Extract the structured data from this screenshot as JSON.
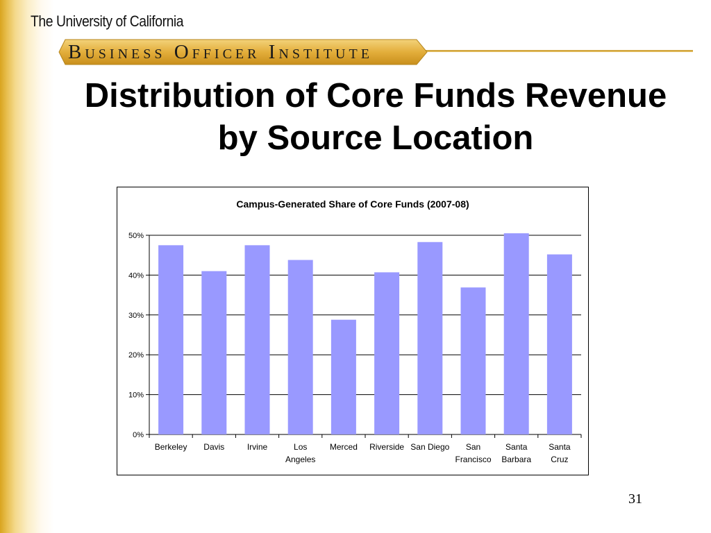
{
  "header": {
    "university": "The University of California",
    "institute": "Business Officer Institute"
  },
  "slide": {
    "title_line1": "Distribution of Core Funds Revenue",
    "title_line2": "by Source Location",
    "page_number": "31"
  },
  "colors": {
    "bar": "#9999ff",
    "gold": "#d9a41f"
  },
  "chart_data": {
    "type": "bar",
    "title": "Campus-Generated Share of Core Funds (2007-08)",
    "categories": [
      [
        "Berkeley"
      ],
      [
        "Davis"
      ],
      [
        "Irvine"
      ],
      [
        "Los",
        "Angeles"
      ],
      [
        "Merced"
      ],
      [
        "Riverside"
      ],
      [
        "San Diego"
      ],
      [
        "San",
        "Francisco"
      ],
      [
        "Santa",
        "Barbara"
      ],
      [
        "Santa",
        "Cruz"
      ]
    ],
    "values": [
      47.5,
      41,
      47.5,
      43.8,
      28.8,
      40.7,
      48.3,
      36.9,
      50.5,
      45.2
    ],
    "yticks": [
      "0%",
      "10%",
      "20%",
      "30%",
      "40%",
      "50%"
    ],
    "ylim": [
      0,
      50
    ],
    "grid": true
  }
}
